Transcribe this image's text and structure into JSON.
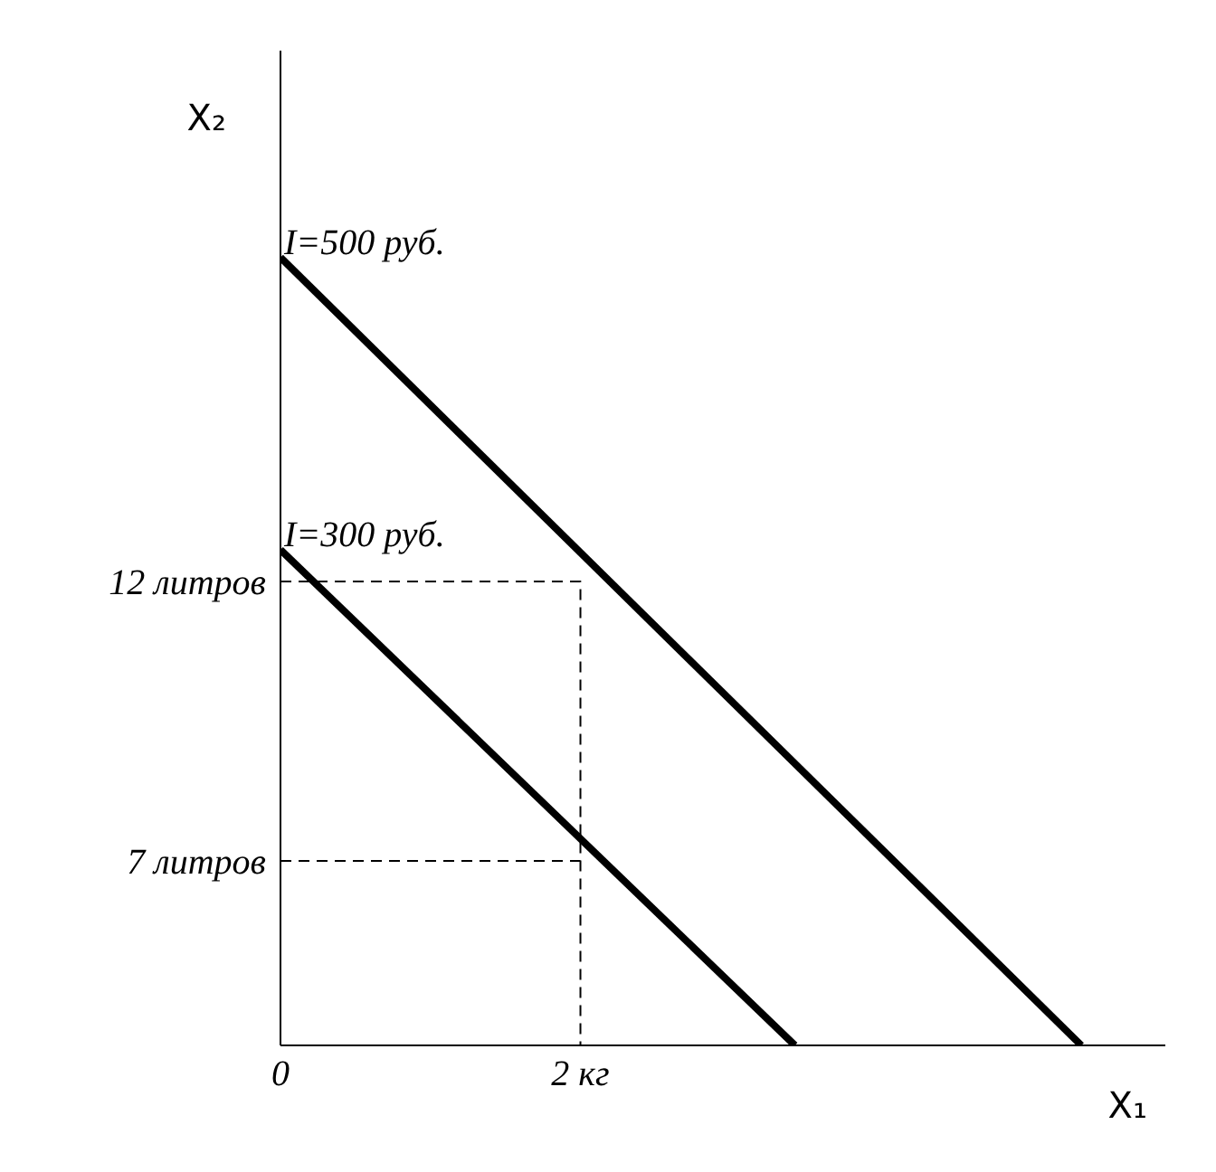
{
  "chart_data": {
    "type": "line",
    "xlabel": "X₁",
    "ylabel": "X₂",
    "xlim": [
      0,
      5.9
    ],
    "ylim": [
      3.7,
      21.5
    ],
    "xticks": [
      {
        "value": 0,
        "label": "0"
      },
      {
        "value": 2,
        "label": "2 кг"
      }
    ],
    "yticks": [
      {
        "value": 7,
        "label": "7 литров"
      },
      {
        "value": 12,
        "label": "12 литров"
      }
    ],
    "series": [
      {
        "color": "#000000",
        "line_style": "solid",
        "x": [
          0,
          5.34
        ],
        "values": [
          17.8,
          3.7
        ]
      },
      {
        "color": "#000000",
        "line_style": "solid",
        "x": [
          0,
          3.43
        ],
        "values": [
          12.57,
          3.7
        ]
      },
      {
        "color": "#000000",
        "line_style": "dashed",
        "x": [
          0,
          2,
          2
        ],
        "values": [
          12,
          12,
          3.7
        ]
      },
      {
        "color": "#000000",
        "line_style": "dashed",
        "x": [
          0,
          2
        ],
        "values": [
          7,
          7
        ]
      }
    ],
    "annotations": [
      {
        "text": "I=500 руб.",
        "x": 0,
        "y": 17.8
      },
      {
        "text": "I=300 руб.",
        "x": 0,
        "y": 12.57
      }
    ]
  }
}
